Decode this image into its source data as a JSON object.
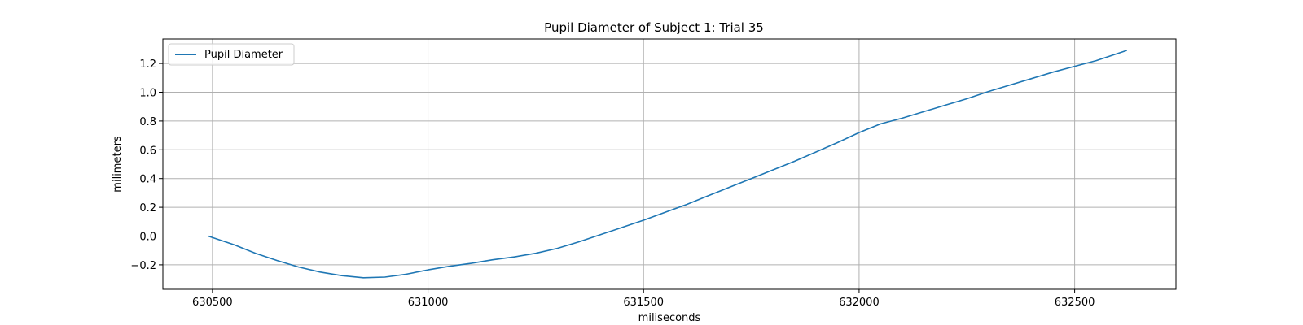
{
  "chart_data": {
    "type": "line",
    "title": "Pupil Diameter of Subject 1: Trial 35",
    "xlabel": "miliseconds",
    "ylabel": "milimeters",
    "xlim": [
      630385,
      632735
    ],
    "ylim": [
      -0.37,
      1.37
    ],
    "xticks": [
      630500,
      631000,
      631500,
      632000,
      632500
    ],
    "xtick_labels": [
      "630500",
      "631000",
      "631500",
      "632000",
      "632500"
    ],
    "yticks": [
      -0.2,
      0.0,
      0.2,
      0.4,
      0.6,
      0.8,
      1.0,
      1.2
    ],
    "ytick_labels": [
      "−0.2",
      "0.0",
      "0.2",
      "0.4",
      "0.6",
      "0.8",
      "1.0",
      "1.2"
    ],
    "grid": true,
    "legend_position": "upper-left",
    "series": [
      {
        "name": "Pupil Diameter",
        "color": "#1f77b4",
        "x": [
          630490,
          630550,
          630600,
          630650,
          630700,
          630750,
          630800,
          630850,
          630900,
          630950,
          631000,
          631050,
          631100,
          631150,
          631200,
          631250,
          631300,
          631350,
          631400,
          631450,
          631500,
          631550,
          631600,
          631650,
          631700,
          631750,
          631800,
          631850,
          631900,
          631950,
          632000,
          632050,
          632100,
          632150,
          632200,
          632250,
          632300,
          632350,
          632400,
          632450,
          632500,
          632550,
          632620
        ],
        "y": [
          0.0,
          -0.06,
          -0.12,
          -0.17,
          -0.215,
          -0.25,
          -0.275,
          -0.29,
          -0.285,
          -0.265,
          -0.235,
          -0.21,
          -0.19,
          -0.165,
          -0.145,
          -0.12,
          -0.085,
          -0.04,
          0.01,
          0.06,
          0.11,
          0.165,
          0.22,
          0.28,
          0.34,
          0.4,
          0.46,
          0.52,
          0.585,
          0.65,
          0.72,
          0.78,
          0.82,
          0.865,
          0.91,
          0.955,
          1.005,
          1.05,
          1.095,
          1.14,
          1.18,
          1.22,
          1.29
        ]
      }
    ]
  }
}
